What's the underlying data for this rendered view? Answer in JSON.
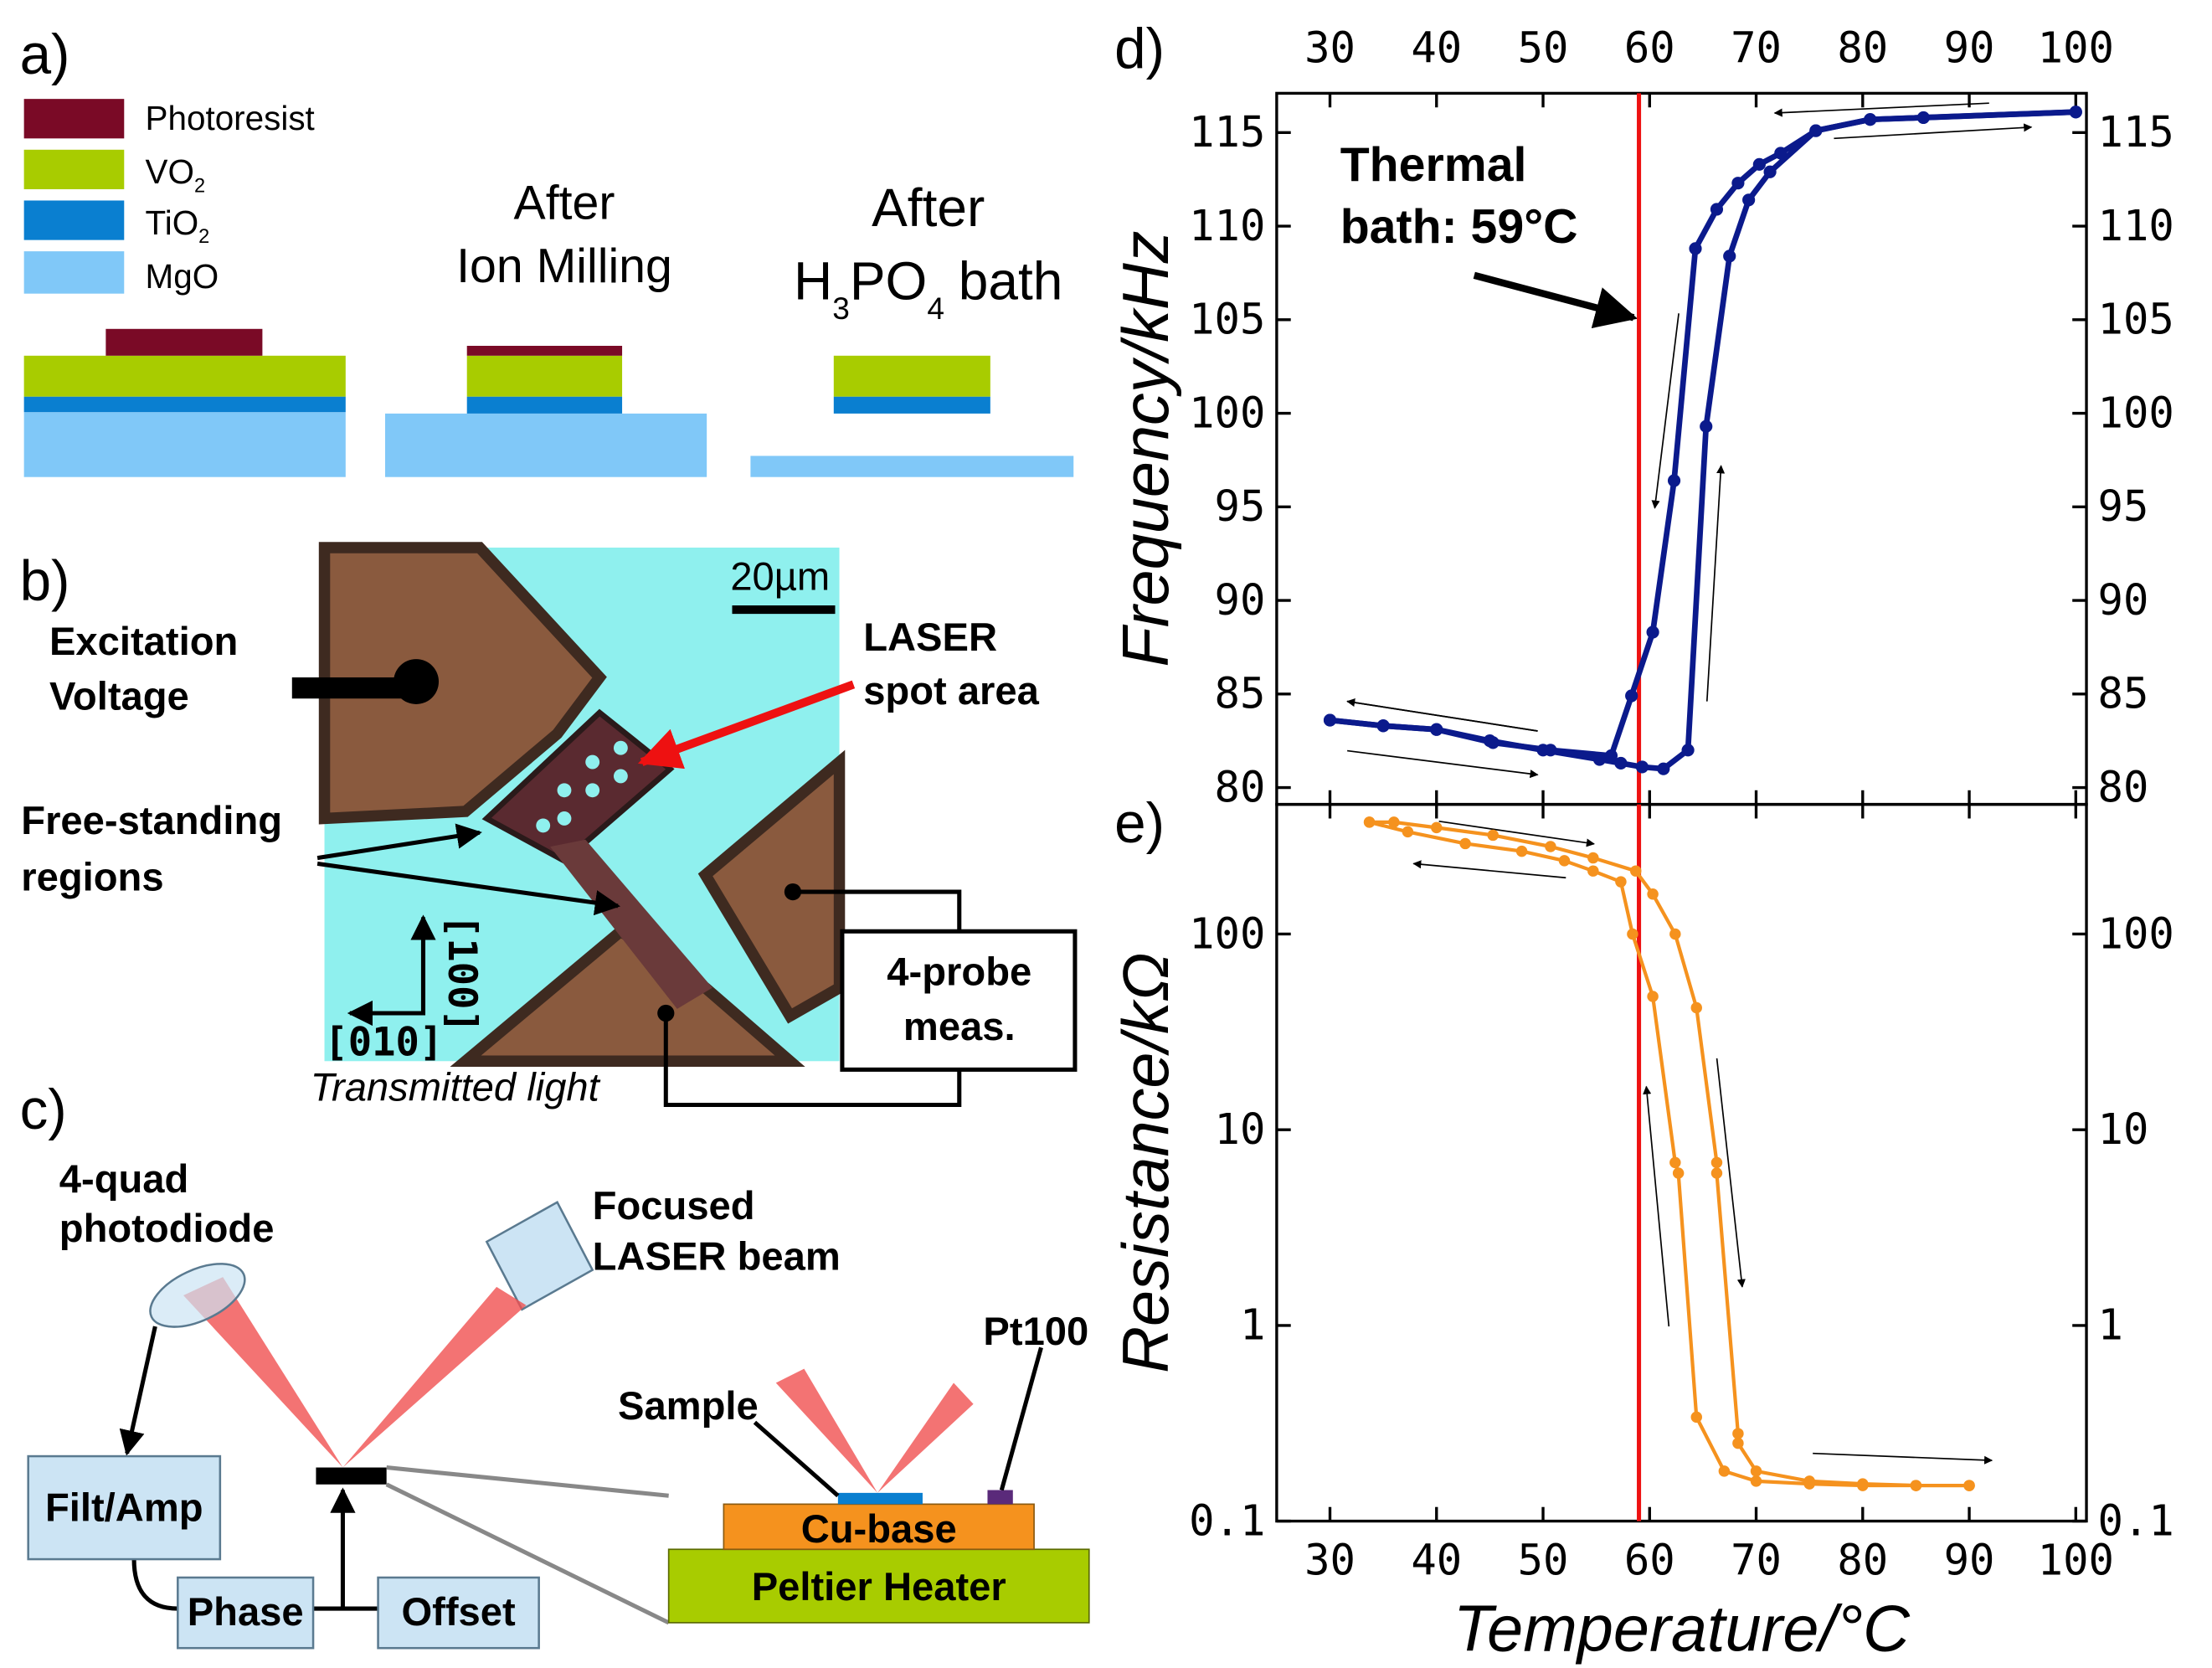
{
  "panel_a": {
    "label": "a)",
    "layers": [
      {
        "text": "Photoresist"
      },
      {
        "text": "VO",
        "sub": "2"
      },
      {
        "text": "TiO",
        "sub": "2"
      },
      {
        "text": "MgO"
      }
    ],
    "step_ion": [
      "After",
      "Ion Milling"
    ],
    "step_bath": {
      "line1": "After",
      "line2": [
        "H",
        "3",
        "PO",
        "4",
        "bath"
      ]
    }
  },
  "panel_b": {
    "label": "b)",
    "excitation": [
      "Excitation",
      "Voltage"
    ],
    "laser_spot": [
      "LASER",
      "spot area"
    ],
    "free_standing": [
      "Free-standing",
      "regions"
    ],
    "scale_bar": "20µm",
    "dir_100": "[100]",
    "dir_010": "[010]",
    "probe": [
      "4-probe",
      "meas."
    ],
    "illumination": "Transmitted light"
  },
  "panel_c": {
    "label": "c)",
    "photodiode": [
      "4-quad",
      "photodiode"
    ],
    "laser": [
      "Focused",
      "LASER beam"
    ],
    "filter": "Filt/Amp",
    "phase": "Phase",
    "offset": "Offset",
    "sample": "Sample",
    "sensor": "Pt100",
    "base": "Cu-base",
    "heater": "Peltier Heater"
  },
  "chart_data": [
    {
      "type": "line",
      "panel_label": "d)",
      "ylabel": "Frequency/kHz",
      "xlim": [
        25,
        101
      ],
      "xticks": [
        30,
        40,
        50,
        60,
        70,
        80,
        90,
        100
      ],
      "x_axis": "top",
      "ylim": [
        79.1,
        117.1
      ],
      "yticks": [
        80,
        85,
        90,
        95,
        100,
        105,
        110,
        115
      ],
      "mirror_y": true,
      "vline": 59,
      "vline_color": "#ee1111",
      "annotation": [
        "Thermal",
        "bath: 59°C"
      ],
      "series": [
        {
          "color": "#0b1a8c",
          "x": [
            30,
            35,
            40,
            45,
            50,
            55.3,
            57.3,
            59.3,
            61.3,
            63.6,
            65.3,
            67.5,
            69.3,
            71.3,
            75.6,
            80.7,
            85.7,
            100
          ],
          "values": [
            83.6,
            83.3,
            83.1,
            82.5,
            82,
            81.5,
            81.3,
            81.1,
            81,
            82,
            99.3,
            108.4,
            111.4,
            112.9,
            115.1,
            115.7,
            115.8,
            116.1
          ]
        },
        {
          "color": "#0b1a8c",
          "x": [
            100,
            80.7,
            75.6,
            72.3,
            70.3,
            68.3,
            66.3,
            64.3,
            62.3,
            60.3,
            58.3,
            56.4,
            50.7,
            45.3,
            40,
            35,
            30
          ],
          "values": [
            116.1,
            115.7,
            115.1,
            113.9,
            113.3,
            112.3,
            110.9,
            108.8,
            96.4,
            88.3,
            84.9,
            81.7,
            82,
            82.4,
            83.1,
            83.3,
            83.6
          ]
        }
      ]
    },
    {
      "type": "line",
      "panel_label": "e)",
      "xlabel": "Temperature/°C",
      "ylabel": "Resistance/kΩ",
      "xlim": [
        25,
        101
      ],
      "xticks": [
        30,
        40,
        50,
        60,
        70,
        80,
        90,
        100
      ],
      "x_axis": "bottom",
      "ylim": [
        0.1,
        460
      ],
      "yticks": [
        0.1,
        1,
        10,
        100
      ],
      "yscale": "log",
      "mirror_y": true,
      "vline": 59,
      "vline_color": "#ee1111",
      "series": [
        {
          "color": "#f5921e",
          "x": [
            90,
            85,
            80,
            75,
            70,
            67,
            64.4,
            62.7,
            62.4,
            60.3,
            58.4,
            57.3,
            54.7,
            52,
            48,
            42.7,
            37.3,
            33.7
          ],
          "values": [
            0.152,
            0.152,
            0.152,
            0.155,
            0.16,
            0.18,
            0.34,
            6,
            6.8,
            48,
            100,
            185,
            210,
            237,
            265,
            290,
            333,
            373
          ]
        },
        {
          "color": "#f5921e",
          "x": [
            33.7,
            36,
            40,
            45.3,
            50.7,
            54.7,
            58.7,
            60.3,
            62.4,
            64.4,
            66.3,
            66.3,
            68.3,
            68.3,
            70,
            75,
            80,
            85,
            90
          ],
          "values": [
            373,
            373,
            350,
            320,
            280,
            245,
            210,
            160,
            100,
            42,
            6.8,
            6,
            0.28,
            0.25,
            0.18,
            0.16,
            0.155,
            0.152,
            0.152
          ]
        }
      ]
    }
  ]
}
